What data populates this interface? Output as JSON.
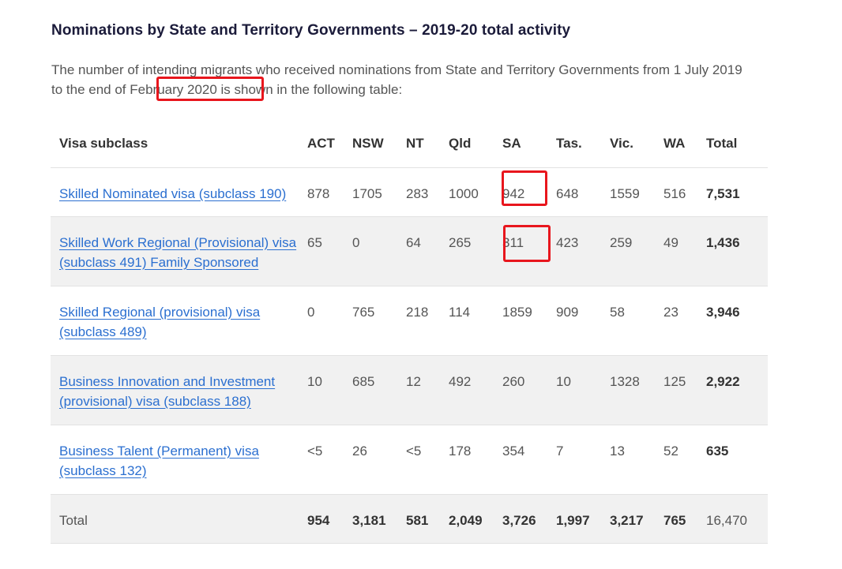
{
  "heading": "Nominations by State and Territory Governments – 2019-20 total activity",
  "intro": "The number of intending migrants who received nominations from State and Territory Governments from 1 July 2019 to the end of February 2020 is shown in the following table:",
  "table": {
    "headers": [
      "Visa subclass",
      "ACT",
      "NSW",
      "NT",
      "Qld",
      "SA",
      "Tas.",
      "Vic.",
      "WA",
      "Total"
    ],
    "rows": [
      {
        "label": "Skilled Nominated visa (subclass 190)",
        "values": [
          "878",
          "1705",
          "283",
          "1000",
          "942",
          "648",
          "1559",
          "516",
          "7,531"
        ]
      },
      {
        "label": "Skilled Work Regional (Provisional) visa (subclass 491) Family Sponsored",
        "values": [
          "65",
          "0",
          "64",
          "265",
          "311",
          "423",
          "259",
          "49",
          "1,436"
        ]
      },
      {
        "label": "Skilled Regional (provisional) visa (subclass 489)",
        "values": [
          "0",
          "765",
          "218",
          "114",
          "1859",
          "909",
          "58",
          "23",
          "3,946"
        ]
      },
      {
        "label": "Business Innovation and Investment (provisional) visa (subclass 188)",
        "values": [
          "10",
          "685",
          "12",
          "492",
          "260",
          "10",
          "1328",
          "125",
          "2,922"
        ]
      },
      {
        "label": "Business Talent (Permanent) visa (subclass 132)",
        "values": [
          "<5",
          "26",
          "<5",
          "178",
          "354",
          "7",
          "13",
          "52",
          "635"
        ]
      }
    ],
    "total": {
      "label": "Total",
      "values": [
        "954",
        "3,181",
        "581",
        "2,049",
        "3,726",
        "1,997",
        "3,217",
        "765",
        "16,470"
      ]
    }
  },
  "colors": {
    "link": "#2b6fd0",
    "highlight": "#e8161d",
    "row_alt": "#f1f1f1"
  }
}
